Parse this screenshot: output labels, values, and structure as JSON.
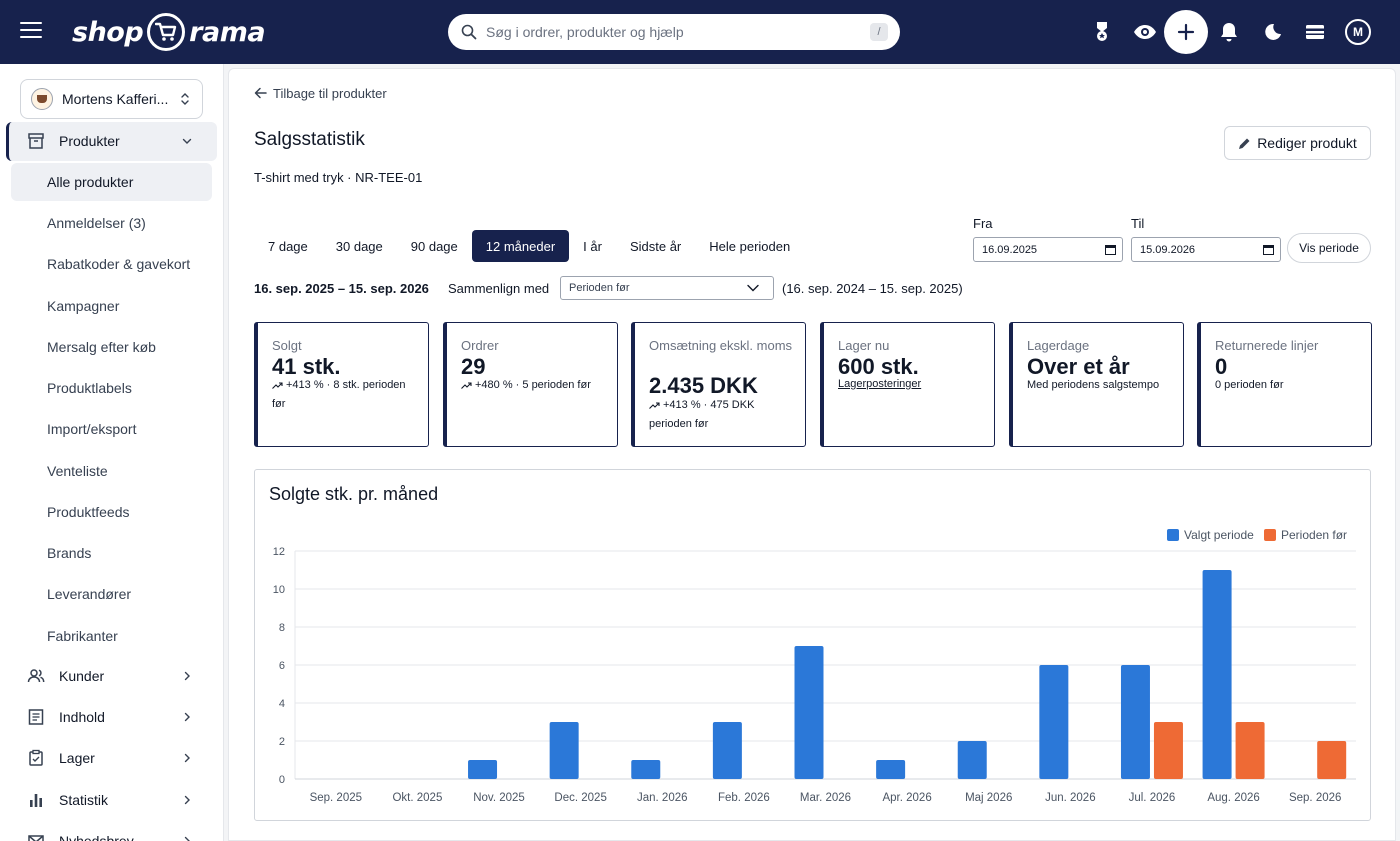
{
  "topbar": {
    "logo_left": "shop",
    "logo_right": "rama",
    "search_placeholder": "Søg i ordrer, produkter og hjælp",
    "search_shortcut": "/",
    "avatar_initial": "M"
  },
  "sidebar": {
    "shop_name": "Mortens Kafferi...",
    "group": {
      "label": "Produkter",
      "icon": "archive-icon"
    },
    "subitems": [
      "Alle produkter",
      "Anmeldelser (3)",
      "Rabatkoder & gavekort",
      "Kampagner",
      "Mersalg efter køb",
      "Produktlabels",
      "Import/eksport",
      "Venteliste",
      "Produktfeeds",
      "Brands",
      "Leverandører",
      "Fabrikanter"
    ],
    "items": [
      {
        "label": "Kunder",
        "icon": "users-icon"
      },
      {
        "label": "Indhold",
        "icon": "document-icon"
      },
      {
        "label": "Lager",
        "icon": "clipboard-icon"
      },
      {
        "label": "Statistik",
        "icon": "bar-chart-icon"
      },
      {
        "label": "Nyhedsbrev",
        "icon": "mail-icon"
      }
    ]
  },
  "main": {
    "back_label": "Tilbage til produkter",
    "title": "Salgsstatistik",
    "edit_label": "Rediger produkt",
    "product_line": "T-shirt med tryk · NR-TEE-01",
    "periods": [
      "7 dage",
      "30 dage",
      "90 dage",
      "12 måneder",
      "I år",
      "Sidste år",
      "Hele perioden"
    ],
    "active_period": "12 måneder",
    "from_label": "Fra",
    "from_value": "16.09.2025",
    "to_label": "Til",
    "to_value": "15.09.2026",
    "show_label": "Vis periode",
    "range": "16. sep. 2025 – 15. sep. 2026",
    "compare_label": "Sammenlign med",
    "compare_value": "Perioden før",
    "compare_range": "(16. sep. 2024 – 15. sep. 2025)"
  },
  "cards": [
    {
      "label": "Solgt",
      "value": "41 stk.",
      "note": "+413 % · 8 stk. perioden før",
      "trend": true
    },
    {
      "label": "Ordrer",
      "value": "29",
      "note": "+480 % · 5 perioden før",
      "trend": true
    },
    {
      "label": "Omsætning ekskl. moms",
      "value": "2.435 DKK",
      "note": "+413 % · 475 DKK perioden før",
      "trend": true
    },
    {
      "label": "Lager nu",
      "value": "600 stk.",
      "link": "Lagerposteringer"
    },
    {
      "label": "Lagerdage",
      "value": "Over et år",
      "note": "Med periodens salgstempo"
    },
    {
      "label": "Returnerede linjer",
      "value": "0",
      "note": "0 perioden før"
    }
  ],
  "chart_data": {
    "type": "bar",
    "title": "Solgte stk. pr. måned",
    "categories": [
      "Sep. 2025",
      "Okt. 2025",
      "Nov. 2025",
      "Dec. 2025",
      "Jan. 2026",
      "Feb. 2026",
      "Mar. 2026",
      "Apr. 2026",
      "Maj 2026",
      "Jun. 2026",
      "Jul. 2026",
      "Aug. 2026",
      "Sep. 2026"
    ],
    "series": [
      {
        "name": "Valgt periode",
        "color": "#2b78d8",
        "values": [
          0,
          0,
          1,
          3,
          1,
          3,
          7,
          1,
          2,
          6,
          6,
          11,
          0
        ]
      },
      {
        "name": "Perioden før",
        "color": "#ee6a35",
        "values": [
          0,
          0,
          0,
          0,
          0,
          0,
          0,
          0,
          0,
          0,
          3,
          3,
          2
        ]
      }
    ],
    "ylim": [
      0,
      12
    ],
    "yticks": [
      0,
      2,
      4,
      6,
      8,
      10,
      12
    ],
    "grid": true,
    "legend": "top-right"
  }
}
